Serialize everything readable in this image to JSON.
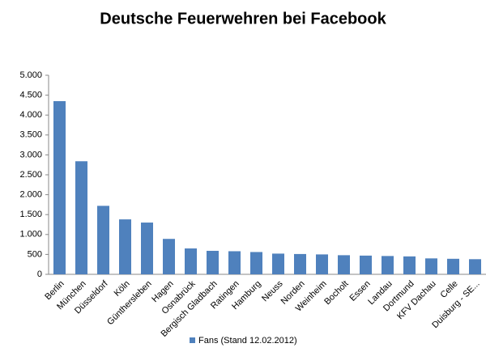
{
  "chart_data": {
    "type": "bar",
    "title": "Deutsche Feuerwehren bei Facebook",
    "categories": [
      "Berlin",
      "München",
      "Düsseldorf",
      "Köln",
      "Günthersleben",
      "Hagen",
      "Osnabrück",
      "Bergisch Gladbach",
      "Ratingen",
      "Hamburg",
      "Neuss",
      "Norden",
      "Weinheim",
      "Bocholt",
      "Essen",
      "Landau",
      "Dortmund",
      "KFV Dachau",
      "Celle",
      "Duisburg - SE..."
    ],
    "series": [
      {
        "name": "Fans (Stand 12.02.2012)",
        "color": "#4f81bd",
        "values": [
          4350,
          2840,
          1720,
          1380,
          1300,
          890,
          650,
          590,
          580,
          560,
          520,
          510,
          500,
          480,
          470,
          460,
          450,
          400,
          390,
          380
        ]
      }
    ],
    "ylim": [
      0,
      5000
    ],
    "yticks": [
      0,
      500,
      {
        "value": 1000,
        "label": "1.000"
      },
      {
        "value": 1500,
        "label": "1.500"
      },
      {
        "value": 2000,
        "label": "2.000"
      },
      {
        "value": 2500,
        "label": "2.500"
      },
      {
        "value": 3000,
        "label": "3.000"
      },
      {
        "value": 3500,
        "label": "3.500"
      },
      {
        "value": 4000,
        "label": "4.000"
      },
      {
        "value": 4500,
        "label": "4.500"
      },
      {
        "value": 5000,
        "label": "5.000"
      }
    ],
    "grid": false,
    "legend": "bottom"
  }
}
